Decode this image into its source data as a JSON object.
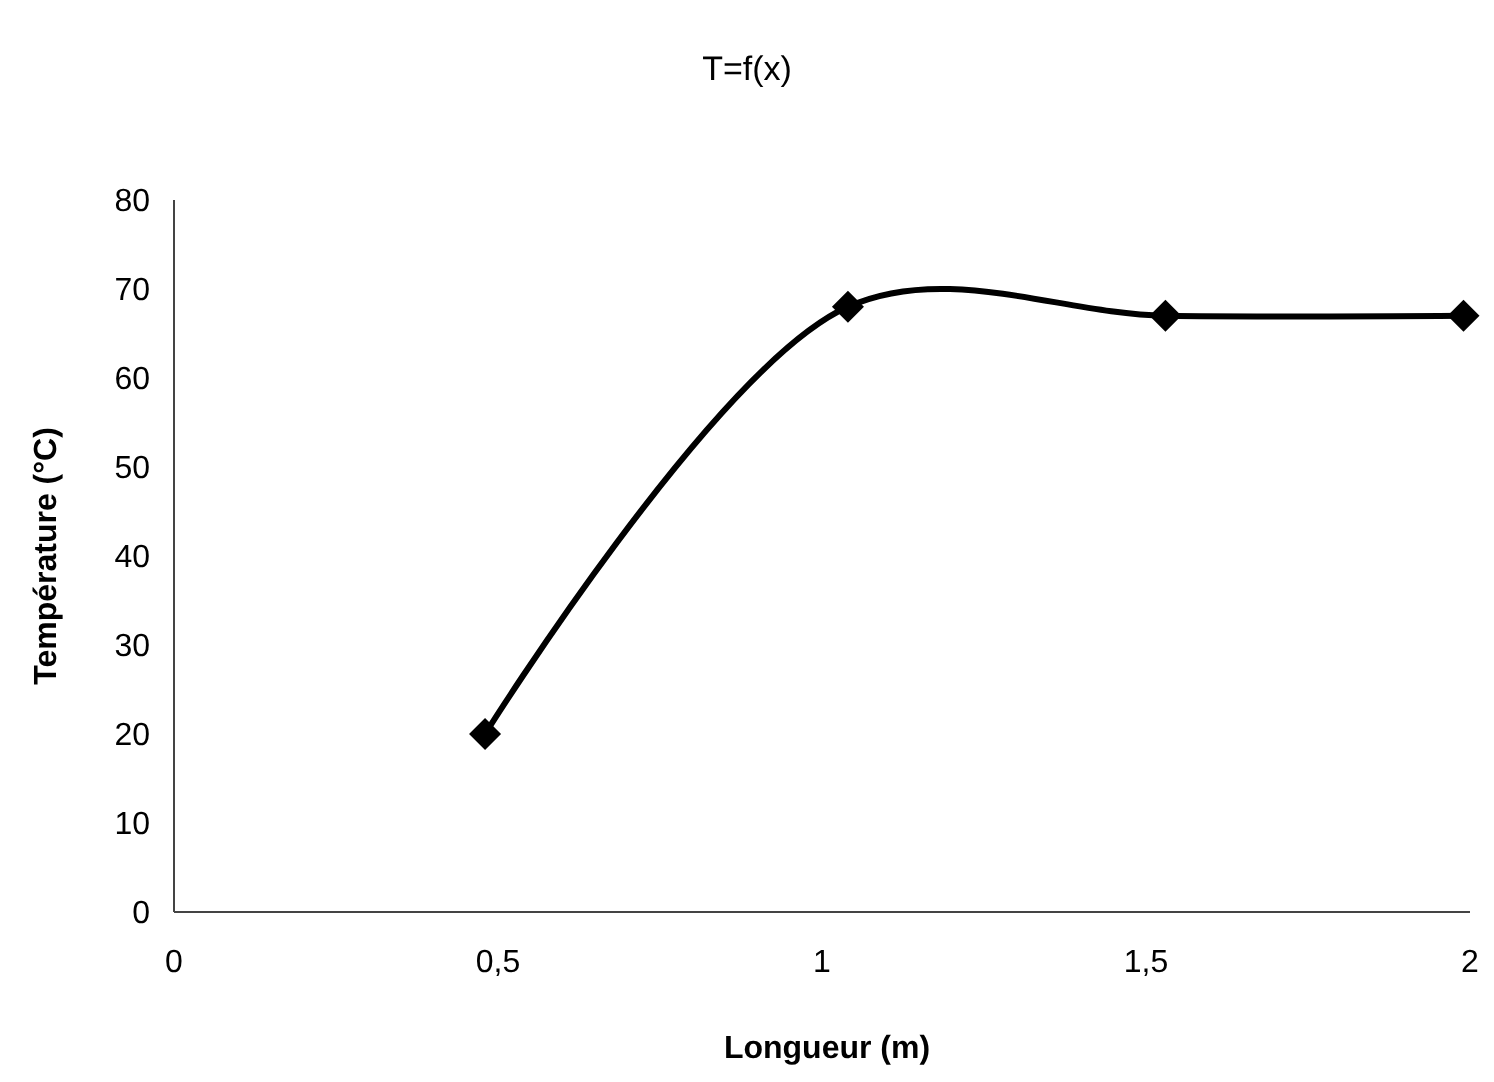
{
  "chart_data": {
    "type": "line",
    "title": "T=f(x)",
    "xlabel": "Longueur (m)",
    "ylabel": "Température (°C)",
    "x": [
      0.48,
      1.04,
      1.53,
      1.99
    ],
    "series": [
      {
        "color": "#000000",
        "values": [
          20,
          68,
          67,
          67
        ]
      }
    ],
    "xlim": [
      0,
      2
    ],
    "xticks": [
      0,
      {
        "value": 0.5,
        "label": "0,5"
      },
      1,
      {
        "value": 1.5,
        "label": "1,5"
      },
      2
    ],
    "ylim": [
      0,
      80
    ],
    "yticks": [
      0,
      10,
      20,
      30,
      40,
      50,
      60,
      70,
      80
    ],
    "marker": "diamond",
    "line_style": "solid",
    "grid": false
  }
}
